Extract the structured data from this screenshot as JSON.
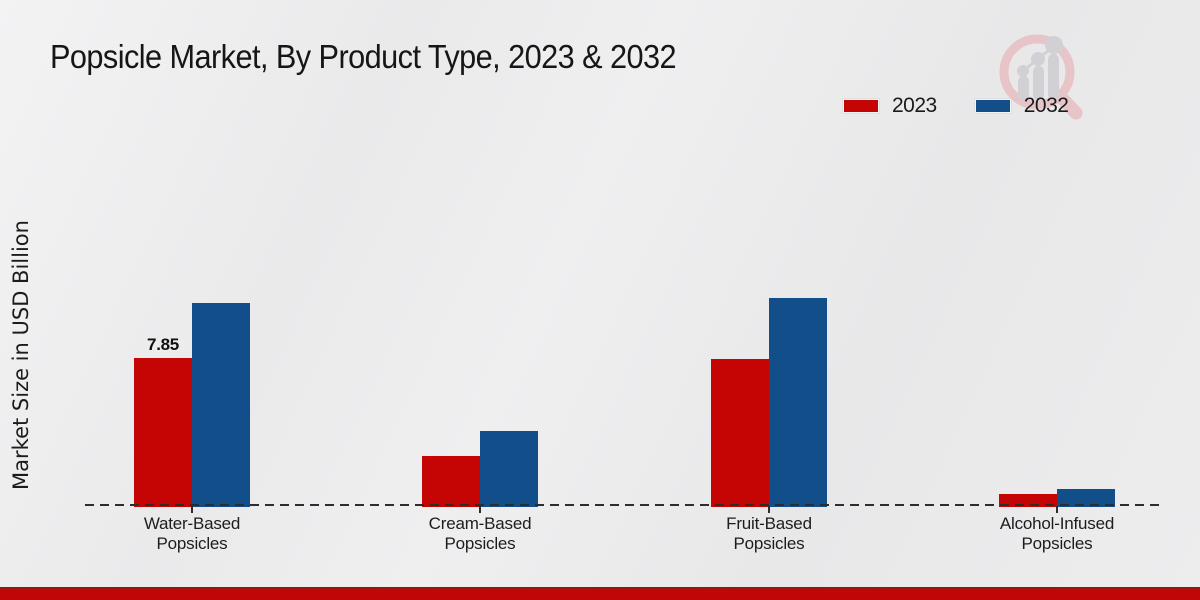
{
  "title": "Popsicle Market, By Product Type, 2023 & 2032",
  "y_axis_label": "Market Size in USD Billion",
  "legend": [
    {
      "label": "2023",
      "color": "#c50404"
    },
    {
      "label": "2032",
      "color": "#114e8a"
    }
  ],
  "colors": {
    "series_2023": "#c50404",
    "series_2032": "#114e8a",
    "footer_accent": "#c10606",
    "background": "#eaeaeb",
    "text": "#1a1a1a"
  },
  "logo": {
    "name": "magnifier-growth-chart-logo"
  },
  "chart_data": {
    "type": "bar",
    "categories": [
      "Water-Based Popsicles",
      "Cream-Based Popsicles",
      "Fruit-Based Popsicles",
      "Alcohol-Infused Popsicles"
    ],
    "series": [
      {
        "name": "2023",
        "color": "#c50404",
        "values": [
          7.85,
          2.7,
          7.8,
          0.7
        ]
      },
      {
        "name": "2032",
        "color": "#114e8a",
        "values": [
          10.75,
          4.0,
          11.0,
          0.95
        ]
      }
    ],
    "annotations": [
      {
        "category_index": 0,
        "series_index": 0,
        "text": "7.85"
      }
    ],
    "title": "Popsicle Market, By Product Type, 2023 & 2032",
    "xlabel": "",
    "ylabel": "Market Size in USD Billion",
    "ylim": [
      0,
      12
    ],
    "grid": false,
    "legend_position": "top-right",
    "zero_line": "dashed",
    "units": "USD Billion"
  }
}
